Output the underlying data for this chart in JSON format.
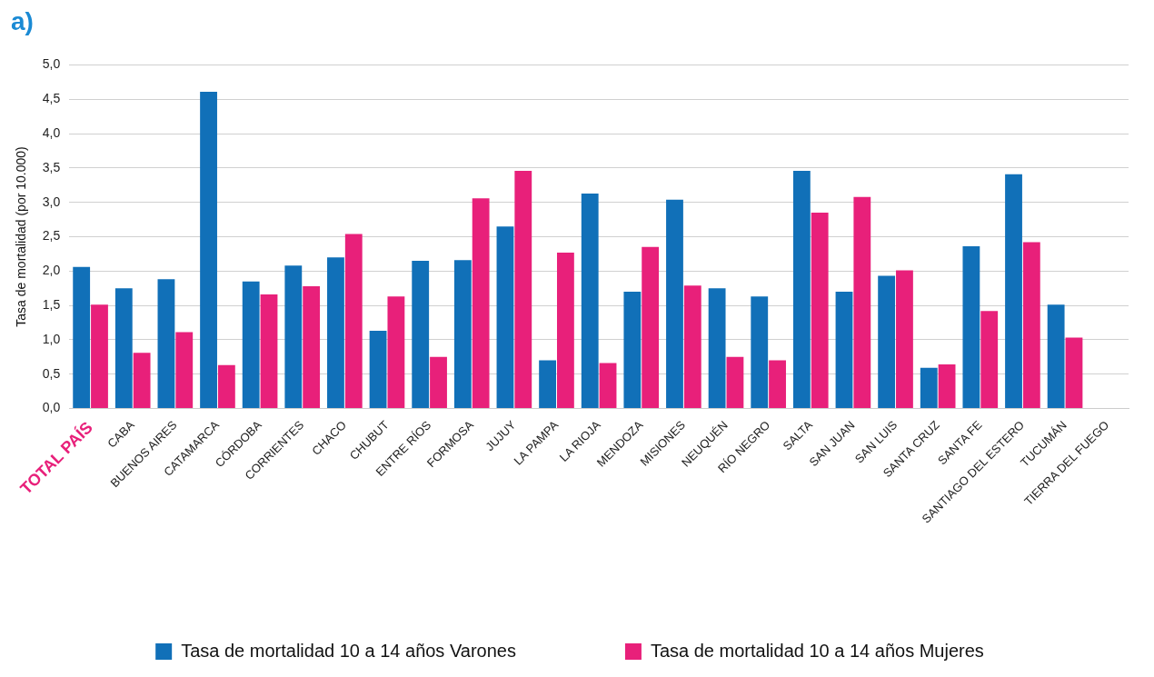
{
  "chart_data": {
    "type": "bar",
    "title": "a)",
    "ylabel": "Tasa de mortalidad (por 10.000)",
    "categories": [
      "TOTAL PAÍS",
      "CABA",
      "BUENOS AIRES",
      "CATAMARCA",
      "CÓRDOBA",
      "CORRIENTES",
      "CHACO",
      "CHUBUT",
      "ENTRE RÍOS",
      "FORMOSA",
      "JUJUY",
      "LA PAMPA",
      "LA RIOJA",
      "MENDOZA",
      "MISIONES",
      "NEUQUÉN",
      "RÍO NEGRO",
      "SALTA",
      "SAN JUAN",
      "SAN LUIS",
      "SANTA CRUZ",
      "SANTA FE",
      "SANTIAGO DEL ESTERO",
      "TUCUMÁN",
      "TIERRA DEL FUEGO"
    ],
    "series": [
      {
        "name": "Tasa de mortalidad 10 a 14 años Varones",
        "color": "#1170b8",
        "values": [
          2.06,
          1.75,
          1.88,
          4.61,
          1.85,
          2.08,
          2.2,
          1.13,
          2.15,
          2.16,
          2.65,
          0.7,
          3.13,
          1.7,
          3.04,
          1.75,
          1.63,
          3.46,
          1.7,
          1.93,
          0.59,
          2.36,
          3.41,
          1.51,
          null
        ]
      },
      {
        "name": "Tasa de mortalidad 10 a 14 años Mujeres",
        "color": "#e8207a",
        "values": [
          1.51,
          0.81,
          1.11,
          0.63,
          1.66,
          1.78,
          2.54,
          1.63,
          0.75,
          3.06,
          3.46,
          2.27,
          0.66,
          2.35,
          1.79,
          0.75,
          0.7,
          2.85,
          3.08,
          2.01,
          0.64,
          1.42,
          2.42,
          1.03,
          null
        ]
      }
    ],
    "ylim": [
      0,
      5
    ],
    "yticks": [
      {
        "value": 0,
        "label": "0,0"
      },
      {
        "value": 0.5,
        "label": "0,5"
      },
      {
        "value": 1,
        "label": "1,0"
      },
      {
        "value": 1.5,
        "label": "1,5"
      },
      {
        "value": 2,
        "label": "2,0"
      },
      {
        "value": 2.5,
        "label": "2,5"
      },
      {
        "value": 3,
        "label": "3,0"
      },
      {
        "value": 3.5,
        "label": "3,5"
      },
      {
        "value": 4,
        "label": "4,0"
      },
      {
        "value": 4.5,
        "label": "4,5"
      },
      {
        "value": 5,
        "label": "5,0"
      }
    ],
    "grid": "y",
    "legend": "bottom"
  }
}
